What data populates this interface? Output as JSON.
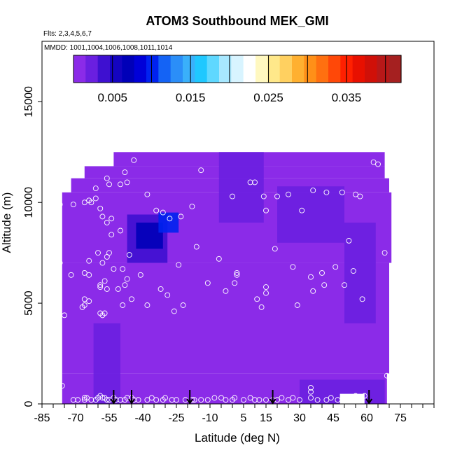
{
  "chart_data": {
    "type": "heatmap",
    "title": "ATOM3 Southbound MEK_GMI",
    "subtitle_flights": "Flts: 2,3,4,5,6,7",
    "subtitle_dates": "MMDD: 1001,1004,1006,1008,1011,1014",
    "xlabel": "Latitude (deg N)",
    "ylabel": "Altitude (m)",
    "xlim": [
      -85,
      90
    ],
    "ylim": [
      0,
      18000
    ],
    "x_ticks": [
      -85,
      -70,
      -55,
      -40,
      -25,
      -10,
      5,
      15,
      30,
      45,
      60,
      75
    ],
    "y_ticks": [
      0,
      5000,
      10000,
      15000
    ],
    "colorbar": {
      "range": [
        0,
        0.042
      ],
      "ticks": [
        0.005,
        0.015,
        0.025,
        0.035
      ],
      "tick_labels": [
        "0.005",
        "0.015",
        "0.025",
        "0.035"
      ],
      "colors": [
        "#8B2BE8",
        "#6A1FE0",
        "#3E10D0",
        "#1404C0",
        "#0000B8",
        "#0000D8",
        "#0022F0",
        "#1463F5",
        "#2B8EF8",
        "#3AB0FA",
        "#1FC8FF",
        "#5FD8FF",
        "#A8E8FF",
        "#D8F4FF",
        "#FFFFFF",
        "#FFF8C0",
        "#FFE88A",
        "#FFD060",
        "#FFB030",
        "#FF9018",
        "#FF7010",
        "#FF4808",
        "#FF2000",
        "#E81000",
        "#D01008",
        "#B81818",
        "#A52020"
      ]
    },
    "background_value": 0.0012,
    "field_rows": [
      {
        "alt_lo": 0,
        "alt_hi": 1500,
        "lat_min": -76,
        "lat_max": 69
      },
      {
        "alt_lo": 1500,
        "alt_hi": 7000,
        "lat_min": -76,
        "lat_max": 70
      },
      {
        "alt_lo": 7000,
        "alt_hi": 10500,
        "lat_min": -76,
        "lat_max": 71
      },
      {
        "alt_lo": 10500,
        "alt_hi": 11200,
        "lat_min": -72,
        "lat_max": 70
      },
      {
        "alt_lo": 11200,
        "alt_hi": 11800,
        "lat_min": -66,
        "lat_max": 68
      },
      {
        "alt_lo": 11800,
        "alt_hi": 12500,
        "lat_min": -53,
        "lat_max": 68
      }
    ],
    "field_notch": {
      "lat_min": 48,
      "lat_max": 59,
      "alt_lo": 0,
      "alt_hi": 500
    },
    "features": [
      {
        "lat_min": -47,
        "lat_max": -29,
        "alt_min": 7000,
        "alt_max": 9400,
        "value": 0.0045
      },
      {
        "lat_min": -43,
        "lat_max": -31,
        "alt_min": 7700,
        "alt_max": 9000,
        "value": 0.0065
      },
      {
        "lat_min": -33,
        "lat_max": -24,
        "alt_min": 8500,
        "alt_max": 9500,
        "value": 0.0105
      },
      {
        "lat_min": -6,
        "lat_max": 14,
        "alt_min": 9000,
        "alt_max": 12500,
        "value": 0.0022
      },
      {
        "lat_min": 20,
        "lat_max": 50,
        "alt_min": 8000,
        "alt_max": 10800,
        "value": 0.0017
      },
      {
        "lat_min": 30,
        "lat_max": 68,
        "alt_min": 0,
        "alt_max": 1200,
        "value": 0.0024
      },
      {
        "lat_min": 50,
        "lat_max": 64,
        "alt_min": 4000,
        "alt_max": 9000,
        "value": 0.0023
      },
      {
        "lat_min": -62,
        "lat_max": -50,
        "alt_min": 0,
        "alt_max": 4000,
        "value": 0.0018
      }
    ],
    "sample_points": [
      [
        -77,
        9900
      ],
      [
        -71,
        9900
      ],
      [
        -66,
        10000
      ],
      [
        -63,
        10000
      ],
      [
        -61,
        10200
      ],
      [
        -59,
        9700
      ],
      [
        -58,
        9300
      ],
      [
        -56,
        9000
      ],
      [
        -54,
        9200
      ],
      [
        -54,
        8400
      ],
      [
        -50,
        8600
      ],
      [
        -64,
        10100
      ],
      [
        -61,
        10700
      ],
      [
        -56,
        11200
      ],
      [
        -55,
        10900
      ],
      [
        -50,
        10900
      ],
      [
        -47,
        11000
      ],
      [
        -44,
        12100
      ],
      [
        -48,
        11500
      ],
      [
        -38,
        10400
      ],
      [
        -34,
        9600
      ],
      [
        -31,
        9500
      ],
      [
        -28,
        9200
      ],
      [
        -23,
        9300
      ],
      [
        -18,
        9800
      ],
      [
        -14,
        11600
      ],
      [
        -16,
        7800
      ],
      [
        -6,
        7200
      ],
      [
        0,
        10300
      ],
      [
        8,
        11000
      ],
      [
        10,
        11000
      ],
      [
        14,
        10300
      ],
      [
        15,
        9600
      ],
      [
        20,
        10300
      ],
      [
        25,
        10400
      ],
      [
        31,
        9600
      ],
      [
        36,
        10600
      ],
      [
        42,
        10500
      ],
      [
        49,
        10500
      ],
      [
        55,
        10400
      ],
      [
        57,
        10300
      ],
      [
        52,
        8100
      ],
      [
        63,
        12000
      ],
      [
        65,
        11900
      ],
      [
        19,
        7700
      ],
      [
        27,
        6800
      ],
      [
        40,
        6500
      ],
      [
        46,
        6800
      ],
      [
        54,
        6600
      ],
      [
        -77,
        7000
      ],
      [
        -72,
        6400
      ],
      [
        -66,
        6500
      ],
      [
        -64,
        6400
      ],
      [
        -64,
        7100
      ],
      [
        -58,
        7000
      ],
      [
        -55,
        7500
      ],
      [
        -56,
        7300
      ],
      [
        -53,
        6700
      ],
      [
        -49,
        6700
      ],
      [
        -47,
        6200
      ],
      [
        -46,
        7400
      ],
      [
        -41,
        6400
      ],
      [
        -24,
        6900
      ],
      [
        -60,
        7500
      ],
      [
        -66,
        5200
      ],
      [
        -67,
        4800
      ],
      [
        -64,
        5100
      ],
      [
        -66,
        4900
      ],
      [
        -59,
        5900
      ],
      [
        -57,
        6100
      ],
      [
        -59,
        5800
      ],
      [
        -56,
        5700
      ],
      [
        -51,
        5700
      ],
      [
        -48,
        5900
      ],
      [
        -45,
        5200
      ],
      [
        -49,
        4900
      ],
      [
        -57,
        4500
      ],
      [
        -58,
        4400
      ],
      [
        -59,
        4500
      ],
      [
        -75,
        4400
      ],
      [
        -32,
        5700
      ],
      [
        -29,
        5400
      ],
      [
        -26,
        4600
      ],
      [
        -22,
        4900
      ],
      [
        -38,
        4900
      ],
      [
        -11,
        6000
      ],
      [
        -3,
        5600
      ],
      [
        1,
        6000
      ],
      [
        2,
        6400
      ],
      [
        2,
        6500
      ],
      [
        11,
        5200
      ],
      [
        13,
        4800
      ],
      [
        15,
        5800
      ],
      [
        15,
        5500
      ],
      [
        29,
        4900
      ],
      [
        35,
        6300
      ],
      [
        36,
        5600
      ],
      [
        41,
        5900
      ],
      [
        50,
        5900
      ],
      [
        58,
        5200
      ],
      [
        68,
        7500
      ],
      [
        69,
        1400
      ],
      [
        -76,
        900
      ],
      [
        -71,
        200
      ],
      [
        -69,
        200
      ],
      [
        -66,
        200
      ],
      [
        -65,
        300
      ],
      [
        -63,
        200
      ],
      [
        -60,
        300
      ],
      [
        -58,
        300
      ],
      [
        -56,
        200
      ],
      [
        -55,
        200
      ],
      [
        -53,
        300
      ],
      [
        -50,
        200
      ],
      [
        -47,
        300
      ],
      [
        -44,
        200
      ],
      [
        -36,
        300
      ],
      [
        -30,
        300
      ],
      [
        -25,
        200
      ],
      [
        -18,
        200
      ],
      [
        -11,
        200
      ],
      [
        -5,
        300
      ],
      [
        0,
        200
      ],
      [
        1,
        300
      ],
      [
        5,
        200
      ],
      [
        10,
        200
      ],
      [
        12,
        200
      ],
      [
        15,
        200
      ],
      [
        18,
        200
      ],
      [
        20,
        200
      ],
      [
        27,
        300
      ],
      [
        35,
        800
      ],
      [
        35,
        600
      ],
      [
        35,
        300
      ],
      [
        42,
        200
      ],
      [
        47,
        200
      ],
      [
        55,
        400
      ],
      [
        59,
        400
      ],
      [
        -66,
        300
      ],
      [
        -61,
        200
      ],
      [
        -59,
        400
      ],
      [
        -57,
        300
      ],
      [
        -52,
        200
      ],
      [
        -48,
        200
      ],
      [
        -45,
        300
      ],
      [
        -42,
        200
      ],
      [
        -38,
        200
      ],
      [
        -34,
        200
      ],
      [
        -31,
        200
      ],
      [
        -27,
        200
      ],
      [
        -21,
        200
      ],
      [
        -17,
        200
      ],
      [
        -14,
        200
      ],
      [
        -8,
        300
      ],
      [
        -3,
        200
      ],
      [
        8,
        300
      ],
      [
        22,
        300
      ],
      [
        25,
        200
      ],
      [
        30,
        200
      ],
      [
        38,
        200
      ],
      [
        44,
        300
      ],
      [
        50,
        300
      ]
    ],
    "flight_arrows_lat": [
      -53,
      -45,
      -19,
      18,
      61
    ]
  }
}
